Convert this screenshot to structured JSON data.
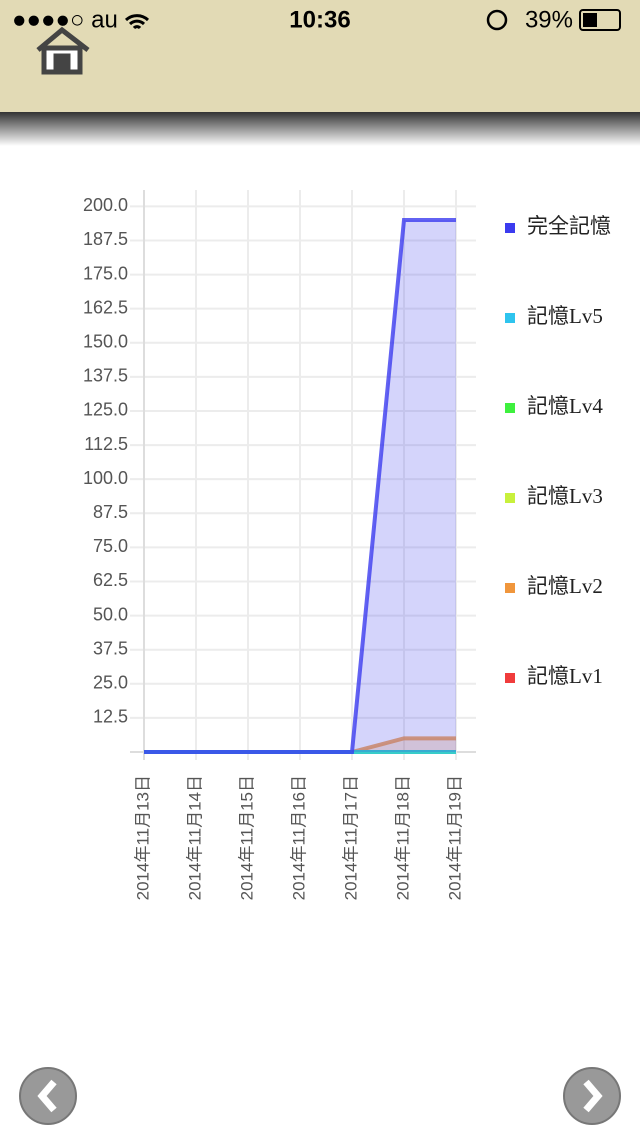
{
  "status_bar": {
    "carrier": "●●●●○ au",
    "time": "10:36",
    "battery": "39%"
  },
  "chart_data": {
    "type": "area",
    "categories": [
      "2014年11月13日",
      "2014年11月14日",
      "2014年11月15日",
      "2014年11月16日",
      "2014年11月17日",
      "2014年11月18日",
      "2014年11月19日"
    ],
    "series": [
      {
        "name": "完全記憶",
        "color": "#3b3bef",
        "values": [
          0,
          0,
          0,
          0,
          0,
          195,
          195
        ]
      },
      {
        "name": "記憶Lv5",
        "color": "#2ec4ee",
        "values": [
          0,
          0,
          0,
          0,
          0,
          0,
          0
        ]
      },
      {
        "name": "記憶Lv4",
        "color": "#3ef03e",
        "values": [
          0,
          0,
          0,
          0,
          0,
          0,
          0
        ]
      },
      {
        "name": "記憶Lv3",
        "color": "#c8f03c",
        "values": [
          0,
          0,
          0,
          0,
          0,
          0,
          0
        ]
      },
      {
        "name": "記憶Lv2",
        "color": "#f0963c",
        "values": [
          0,
          0,
          0,
          0,
          0,
          5,
          5
        ]
      },
      {
        "name": "記憶Lv1",
        "color": "#f03c3c",
        "values": [
          0,
          0,
          0,
          0,
          0,
          0,
          0
        ]
      }
    ],
    "ylim": [
      0,
      206
    ],
    "yticks": [
      12.5,
      {
        "value": 25,
        "label": "25.0"
      },
      37.5,
      {
        "value": 50,
        "label": "50.0"
      },
      62.5,
      {
        "value": 75,
        "label": "75.0"
      },
      87.5,
      {
        "value": 100,
        "label": "100.0"
      },
      112.5,
      {
        "value": 125,
        "label": "125.0"
      },
      137.5,
      {
        "value": 150,
        "label": "150.0"
      },
      162.5,
      {
        "value": 175,
        "label": "175.0"
      },
      187.5,
      {
        "value": 200,
        "label": "200.0"
      }
    ],
    "grid": true,
    "legend": "right"
  }
}
